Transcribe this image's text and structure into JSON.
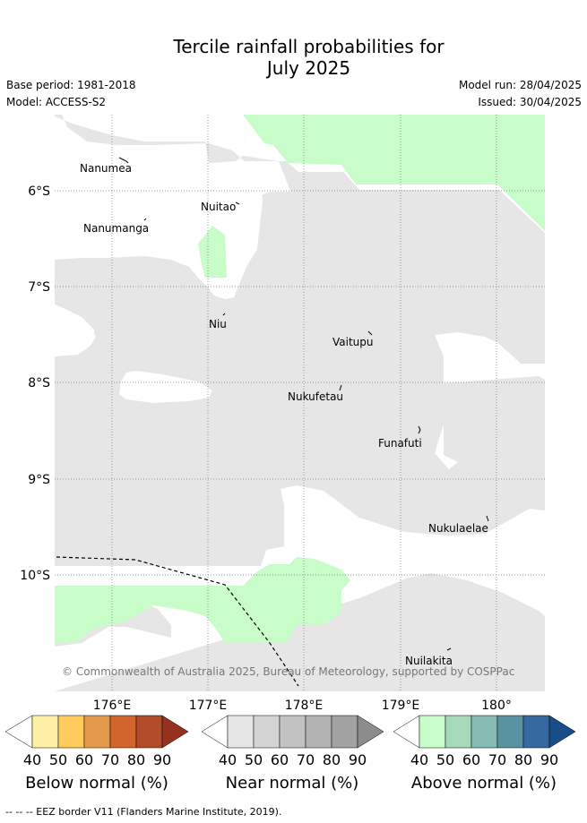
{
  "title_line1": "Tercile rainfall probabilities for",
  "title_line2": "July 2025",
  "base_period": "Base period: 1981-2018",
  "model": "Model: ACCESS-S2",
  "model_run": "Model run: 28/04/2025",
  "issued": "Issued: 30/04/2025",
  "copyright": "© Commonwealth of Australia 2025, Bureau of Meteorology, supported by COSPPac",
  "lat_labels": [
    "6°S",
    "7°S",
    "8°S",
    "9°S",
    "10°S"
  ],
  "lon_labels": [
    "176°E",
    "177°E",
    "178°E",
    "179°E",
    "180°"
  ],
  "places": [
    "Nanumea",
    "Nuitao",
    "Nanumanga",
    "Niu",
    "Vaitupu",
    "Nukufetau",
    "Funafuti",
    "Nukulaelae",
    "Nuilakita"
  ],
  "colorbars": [
    {
      "label": "Below normal (%)",
      "ticks": [
        "40",
        "50",
        "60",
        "70",
        "80",
        "90"
      ],
      "colors": [
        "#ffffff",
        "#fff0a8",
        "#fecb5c",
        "#e59a4b",
        "#d2642e",
        "#b24b28",
        "#96301f"
      ]
    },
    {
      "label": "Near normal (%)",
      "ticks": [
        "40",
        "50",
        "60",
        "70",
        "80",
        "90"
      ],
      "colors": [
        "#ffffff",
        "#e6e6e6",
        "#d4d4d4",
        "#c2c2c2",
        "#b3b3b3",
        "#a3a3a3",
        "#8c8c8c"
      ]
    },
    {
      "label": "Above normal (%)",
      "ticks": [
        "40",
        "50",
        "60",
        "70",
        "80",
        "90"
      ],
      "colors": [
        "#ffffff",
        "#c8fdc9",
        "#a5d9b9",
        "#85bbb3",
        "#5a93a0",
        "#35699f",
        "#194d87"
      ]
    }
  ],
  "map_colors": {
    "near_normal_40_50": "#e6e6e6",
    "above_normal_40_50": "#c8fdc9",
    "grid": "#888888"
  },
  "footer": "--  --  -- EEZ border V11 (Flanders Marine Institute, 2019)."
}
